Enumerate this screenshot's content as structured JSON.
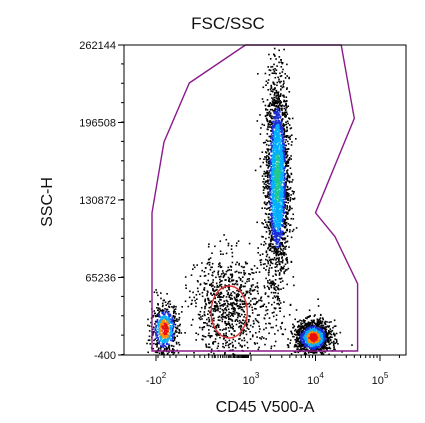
{
  "chart_data": {
    "type": "scatter",
    "title": "FSC/SSC",
    "xlabel": "CD45 V500-A",
    "ylabel": "SSC-H",
    "y_scale": "linear",
    "x_scale": "biexponential",
    "ylim": [
      -400,
      262144
    ],
    "yticks": [
      {
        "value": 262144,
        "label": "262144"
      },
      {
        "value": 196508,
        "label": "196508"
      },
      {
        "value": 130872,
        "label": "130872"
      },
      {
        "value": 65236,
        "label": "65236"
      },
      {
        "value": -400,
        "label": "-400"
      }
    ],
    "xticks": [
      {
        "value": -100,
        "label": "-10",
        "exp": "2"
      },
      {
        "value": 1000,
        "label": "10",
        "exp": "3"
      },
      {
        "value": 10000,
        "label": "10",
        "exp": "4"
      },
      {
        "value": 100000,
        "label": "10",
        "exp": "5"
      }
    ],
    "gates": [
      {
        "shape": "polygon",
        "color": "#8b1a8b",
        "points": [
          [
            -60,
            180000
          ],
          [
            40,
            230000
          ],
          [
            800,
            262144
          ],
          [
            25000,
            262144
          ],
          [
            40000,
            200000
          ],
          [
            10000,
            120000
          ],
          [
            20000,
            100000
          ],
          [
            45000,
            60000
          ],
          [
            45000,
            3000
          ],
          [
            -120,
            3000
          ],
          [
            -120,
            120000
          ]
        ]
      },
      {
        "shape": "ellipse",
        "color": "#e03030",
        "center": [
          400,
          36000
        ],
        "rx_decades": 0.35,
        "ry": 22000
      }
    ],
    "populations": [
      {
        "name": "",
        "cx": 2500,
        "cy": 150000,
        "sx_decades": 0.09,
        "sy": 42000,
        "n": 2600,
        "density_peak": "green"
      },
      {
        "name": "",
        "cx": 9000,
        "cy": 15000,
        "sx_decades": 0.14,
        "sy": 7000,
        "n": 1300,
        "density_peak": "red"
      },
      {
        "name": "",
        "cx": -60,
        "cy": 22000,
        "sx_decades": 0.05,
        "sy": 11000,
        "n": 600,
        "density_peak": "red"
      },
      {
        "name": "",
        "cx": 400,
        "cy": 40000,
        "sx_decades": 0.4,
        "sy": 22000,
        "n": 900,
        "density_peak": "black"
      }
    ],
    "density_colormap": [
      "#1a2fd6",
      "#00b0ff",
      "#22c98a",
      "#c8e01c",
      "#ff8c00",
      "#e81010"
    ],
    "grid": false,
    "legend": "none"
  }
}
